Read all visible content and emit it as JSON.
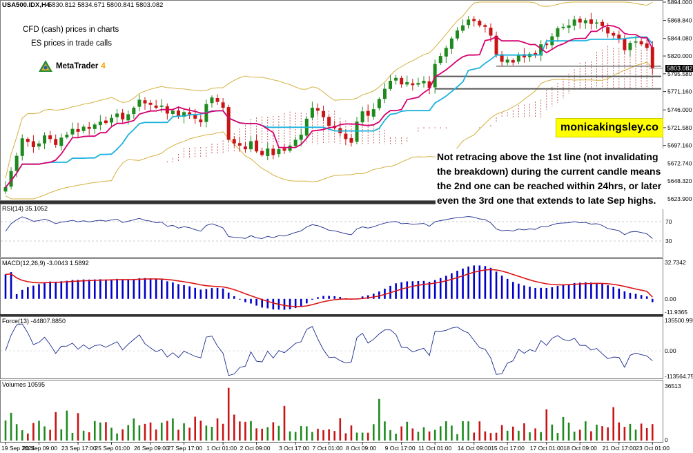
{
  "header": {
    "symbol": "USA500.IDX,H4",
    "ohlc": "5830.812 5834.671 5800.841 5803.082"
  },
  "annotations": {
    "cfd_note": "CFD (cash) prices in charts",
    "es_note": "ES prices in trade calls",
    "platform_name": "MetaTrader",
    "platform_version": "4",
    "brand": "monicakingsley.co",
    "comment": "Not retracing above the 1st line (not invalidating the breakdown) during the current candle means the 2nd one can be reached within 24hrs, or later even the 3rd one that extends to late Sep highs."
  },
  "colors": {
    "bull": "#1e8a1e",
    "bear": "#c81414",
    "kijun": "#d6006e",
    "tenkan": "#1ab2dc",
    "bands": "#d4b040",
    "cloud": "#b43c3c",
    "macd_hist": "#0000c8",
    "macd_signal": "#dc1414",
    "osc_line": "#1a2a8c",
    "vol_up": "#1e8a1e",
    "vol_down": "#c81414"
  },
  "chart_data": {
    "type": "candlestick",
    "timeframe": "H4",
    "price_axis": {
      "min": 5623.9,
      "max": 5894.0,
      "ticks": [
        5894.0,
        5868.84,
        5844.08,
        5820.0,
        5795.58,
        5771.16,
        5746.0,
        5721.58,
        5697.16,
        5672.74,
        5648.32,
        5623.9
      ],
      "tick_labels": [
        "5894.000",
        "5868.840",
        "5844.080",
        "5820.000",
        "5795.580",
        "5771.160",
        "5746.000",
        "5721.580",
        "5697.160",
        "5672.740",
        "5648.320",
        "5623.900"
      ]
    },
    "current_price": 5803.082,
    "current_price_label": "5803.082",
    "horizontal_lines": [
      {
        "name": "1st line",
        "price": 5806.0,
        "from_index": 88
      },
      {
        "name": "2nd line",
        "price": 5792.0,
        "from_index": 77
      },
      {
        "name": "3rd line",
        "price": 5775.0,
        "from_index": 77
      }
    ],
    "x_labels": [
      "19 Sep 2024",
      "20 Sep 09:00",
      "23 Sep 17:00",
      "25 Sep 01:00",
      "26 Sep 09:00",
      "27 Sep 17:00",
      "1 Oct 01:00",
      "2 Oct 09:00",
      "3 Oct 17:00",
      "7 Oct 01:00",
      "8 Oct 09:00",
      "9 Oct 17:00",
      "11 Oct 01:00",
      "14 Oct 09:00",
      "15 Oct 17:00",
      "17 Oct 01:00",
      "18 Oct 09:00",
      "21 Oct 17:00",
      "23 Oct 01:00"
    ],
    "closes": [
      5640,
      5662,
      5683,
      5707,
      5702,
      5695,
      5700,
      5711,
      5706,
      5698,
      5708,
      5712,
      5720,
      5716,
      5723,
      5720,
      5726,
      5730,
      5728,
      5735,
      5741,
      5733,
      5740,
      5749,
      5760,
      5755,
      5753,
      5749,
      5752,
      5741,
      5745,
      5737,
      5743,
      5740,
      5734,
      5729,
      5754,
      5763,
      5757,
      5749,
      5705,
      5700,
      5697,
      5692,
      5703,
      5689,
      5684,
      5693,
      5684,
      5692,
      5690,
      5697,
      5705,
      5712,
      5734,
      5749,
      5745,
      5736,
      5724,
      5721,
      5714,
      5706,
      5701,
      5730,
      5744,
      5738,
      5747,
      5761,
      5775,
      5786,
      5790,
      5781,
      5784,
      5780,
      5783,
      5786,
      5776,
      5809,
      5820,
      5831,
      5844,
      5855,
      5862,
      5870,
      5868,
      5862,
      5860,
      5848,
      5822,
      5812,
      5815,
      5811,
      5822,
      5818,
      5823,
      5821,
      5836,
      5835,
      5847,
      5858,
      5860,
      5862,
      5870,
      5866,
      5869,
      5864,
      5866,
      5861,
      5851,
      5848,
      5844,
      5828,
      5838,
      5840,
      5836,
      5831,
      5803
    ],
    "rsi": {
      "label": "RSI(14) 35.1052",
      "levels": [
        70,
        30
      ],
      "level_labels": [
        "70",
        "30"
      ],
      "latest": 35.1052
    },
    "macd": {
      "label": "MACD(12,26,9) -3.0043 1.5892",
      "macd": -3.0043,
      "signal": 1.5892,
      "axis": {
        "max": 32.7342,
        "zero": 0.0,
        "min": -11.9365
      },
      "axis_labels": [
        "32.7342",
        "0.00",
        "-11.9365"
      ]
    },
    "force": {
      "label": "Force(13) -44807.8850",
      "latest": -44807.885,
      "axis": {
        "max": 135500.995,
        "zero": 0.0,
        "min": -113564.75
      },
      "axis_labels": [
        "135500.995",
        "0.00",
        "-113564.75"
      ]
    },
    "volumes": {
      "label": "Volumes 10595",
      "latest": 10595,
      "axis_max": 36513,
      "axis_labels": [
        "36513",
        "0"
      ]
    }
  }
}
